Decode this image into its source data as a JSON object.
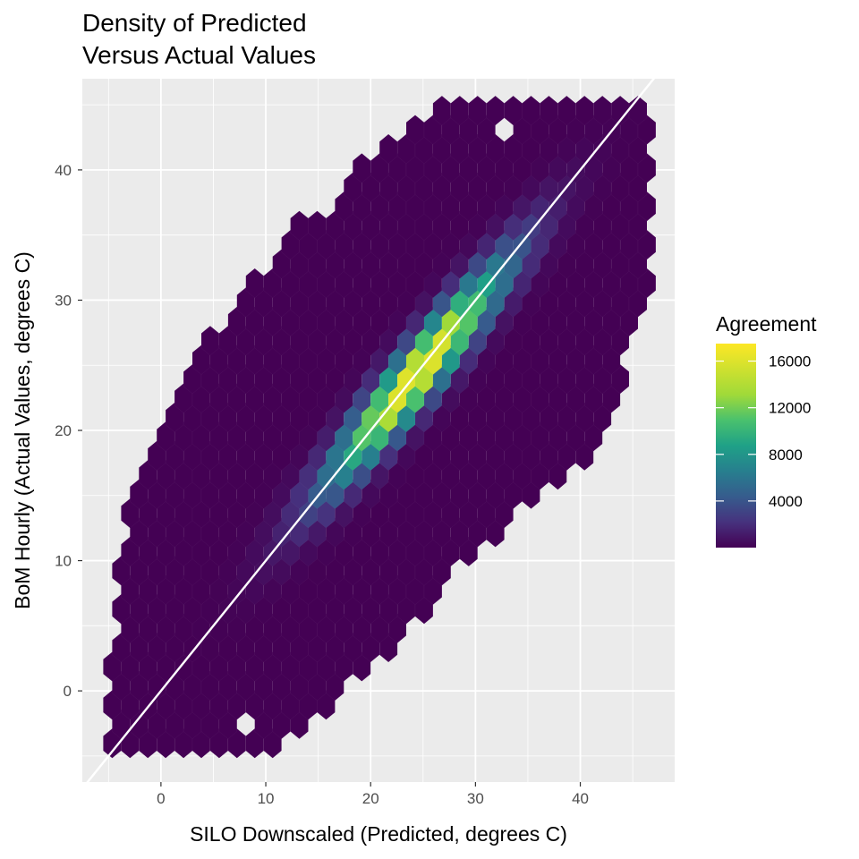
{
  "chart_data": {
    "type": "hexbin",
    "title": [
      "Density of Predicted",
      "Versus Actual Values"
    ],
    "xlabel": "SILO Downscaled (Predicted, degrees C)",
    "ylabel": "BoM Hourly (Actual Values, degrees C)",
    "xlim": [
      -7.5,
      49
    ],
    "ylim": [
      -7,
      47
    ],
    "x_ticks": [
      0,
      10,
      20,
      30,
      40
    ],
    "y_ticks": [
      0,
      10,
      20,
      30,
      40
    ],
    "x_minor": [
      -5,
      5,
      15,
      25,
      35,
      45
    ],
    "y_minor": [
      -5,
      5,
      15,
      25,
      35,
      45
    ],
    "grid": true,
    "reference_line": {
      "type": "identity",
      "slope": 1,
      "intercept": 0,
      "color": "#ffffff"
    },
    "legend": {
      "title": "Agreement",
      "position": "right",
      "breaks": [
        4000,
        8000,
        12000,
        16000
      ],
      "range": [
        0,
        17500
      ],
      "colormap": "viridis"
    },
    "hexbin": {
      "bin_width_x": 1.7,
      "bin_height_y": 1.7,
      "density_ridge": {
        "along": "y = x",
        "peak_center": [
          24.5,
          24.5
        ],
        "peak_count": 16800,
        "spread_along": 5.5,
        "spread_across": 1.3
      },
      "outline_polygon_y_by_x": [
        [
          -5,
          -4,
          1
        ],
        [
          -3,
          -4,
          14
        ],
        [
          0,
          -4,
          20
        ],
        [
          5,
          -4,
          27
        ],
        [
          10,
          -4,
          32
        ],
        [
          13,
          -3,
          36
        ],
        [
          16,
          -1,
          36
        ],
        [
          19,
          2,
          40
        ],
        [
          22,
          4,
          42
        ],
        [
          25,
          6,
          44
        ],
        [
          28,
          10,
          45
        ],
        [
          31,
          12,
          45
        ],
        [
          34,
          14,
          45
        ],
        [
          37,
          16,
          45
        ],
        [
          40,
          18,
          45
        ],
        [
          43,
          22,
          45
        ],
        [
          45,
          28,
          45
        ],
        [
          47,
          32,
          45
        ]
      ],
      "holes": [
        [
          33.5,
          43.5
        ],
        [
          8.5,
          -2
        ]
      ]
    },
    "colors": {
      "panel_bg": "#ebebeb",
      "grid_major": "#ffffff",
      "low": "#440154",
      "high": "#fde725"
    }
  }
}
